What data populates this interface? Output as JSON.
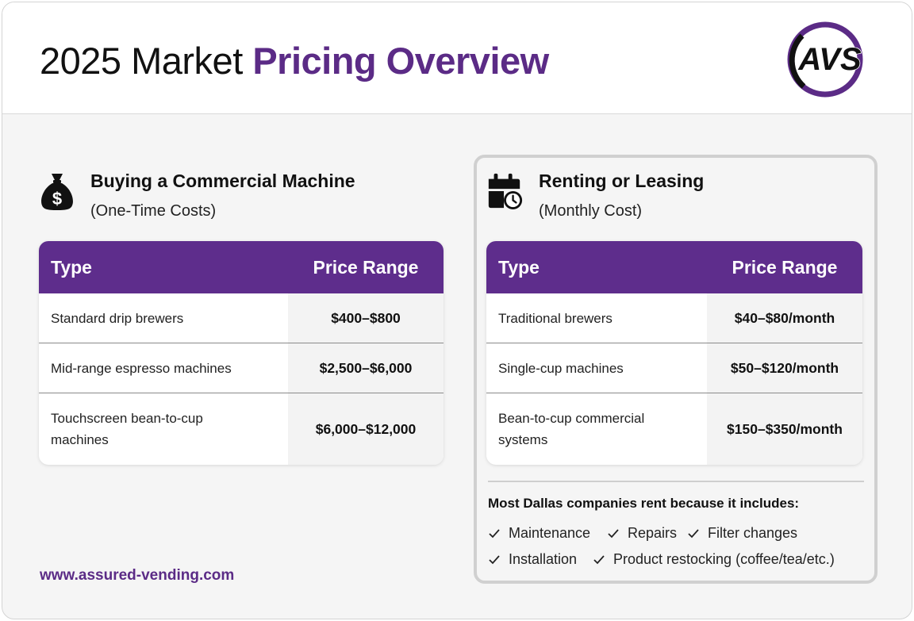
{
  "header": {
    "title_plain": "2025 Market ",
    "title_accent": "Pricing Overview",
    "logo_text": "AVS"
  },
  "colors": {
    "accent": "#5b2b86",
    "table_header": "#5e2d8c"
  },
  "buying": {
    "icon": "money-bag-icon",
    "title": "Buying a Commercial Machine",
    "subtitle": "(One-Time Costs)",
    "columns": [
      "Type",
      "Price Range"
    ],
    "rows": [
      {
        "type": "Standard drip brewers",
        "price": "$400–$800"
      },
      {
        "type": "Mid-range espresso machines",
        "price": "$2,500–$6,000"
      },
      {
        "type": "Touchscreen bean-to-cup machines",
        "price": "$6,000–$12,000"
      }
    ]
  },
  "renting": {
    "icon": "calendar-clock-icon",
    "title": "Renting or Leasing",
    "subtitle": "(Monthly Cost)",
    "columns": [
      "Type",
      "Price Range"
    ],
    "rows": [
      {
        "type": "Traditional brewers",
        "price": "$40–$80/month"
      },
      {
        "type": "Single-cup machines",
        "price": "$50–$120/month"
      },
      {
        "type": "Bean-to-cup commercial systems",
        "price": "$150–$350/month"
      }
    ],
    "note": "Most Dallas companies rent because it includes:",
    "benefits": [
      "Maintenance",
      "Repairs",
      "Filter changes",
      "Installation",
      "Product restocking (coffee/tea/etc.)"
    ]
  },
  "footer": {
    "url": "www.assured-vending.com"
  }
}
